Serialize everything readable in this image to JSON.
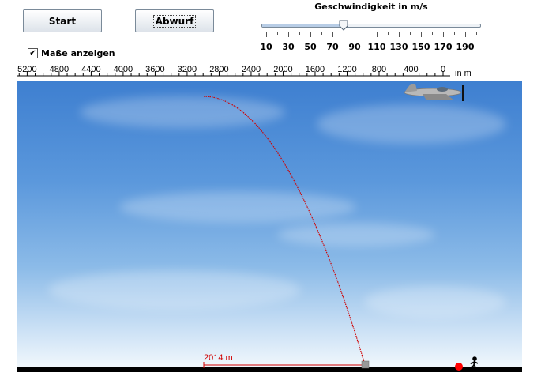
{
  "controls": {
    "start_label": "Start",
    "drop_label": "Abwurf",
    "show_dimensions_label": "Maße anzeigen",
    "show_dimensions_checked": true,
    "check_glyph": "✔"
  },
  "speed_slider": {
    "title": "Geschwindigkeit in m/s",
    "min": 10,
    "max": 200,
    "value": 80,
    "tick_labels": [
      "10",
      "30",
      "50",
      "70",
      "90",
      "110",
      "130",
      "150",
      "170",
      "190"
    ]
  },
  "distance_ruler": {
    "unit_label": "in m",
    "tick_labels": [
      "5200",
      "4800",
      "4400",
      "4000",
      "3600",
      "3200",
      "2800",
      "2400",
      "2000",
      "1600",
      "1200",
      "800",
      "400",
      "0"
    ],
    "max_m": 5200
  },
  "scene": {
    "distance_label": "2014 m",
    "distance_m": 2014,
    "colors": {
      "trajectory": "#d00000",
      "target_marker": "#ff0000",
      "ground": "#000000"
    },
    "icons": [
      "airplane-icon",
      "walking-person-icon",
      "target-dot-icon",
      "bomb-impact-icon"
    ]
  }
}
